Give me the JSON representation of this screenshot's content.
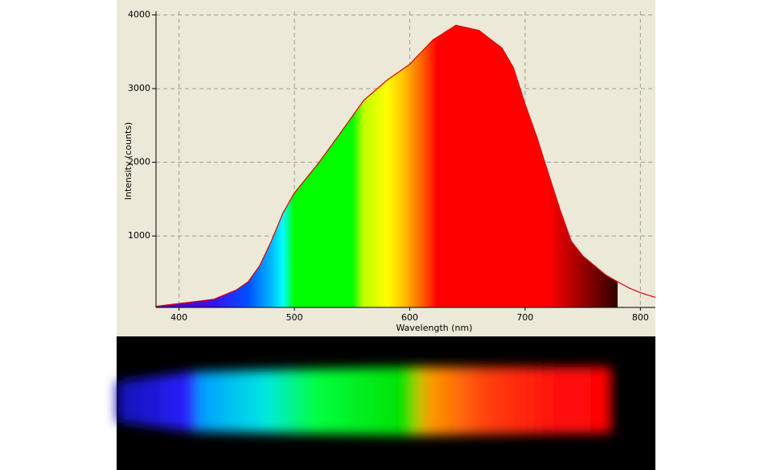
{
  "chart_data": {
    "type": "area",
    "x": [
      380,
      430,
      450,
      460,
      470,
      480,
      490,
      500,
      520,
      540,
      560,
      580,
      600,
      620,
      640,
      660,
      680,
      690,
      700,
      710,
      720,
      730,
      740,
      750,
      760,
      770,
      780,
      790,
      800,
      813
    ],
    "series": [
      {
        "color": "#e00000",
        "values": [
          45,
          140,
          270,
          380,
          600,
          930,
          1310,
          1585,
          1970,
          2400,
          2840,
          3110,
          3330,
          3660,
          3860,
          3790,
          3550,
          3280,
          2790,
          2350,
          1860,
          1370,
          930,
          730,
          600,
          470,
          380,
          295,
          230,
          165
        ]
      }
    ],
    "xlabel": "Wavelength (nm)",
    "ylabel": "Intensity (counts)",
    "xlim": [
      380,
      813
    ],
    "ylim": [
      30,
      4050
    ],
    "xticks": [
      400,
      500,
      600,
      700,
      800
    ],
    "yticks": [
      1000,
      2000,
      3000,
      4000
    ],
    "grid": true
  }
}
